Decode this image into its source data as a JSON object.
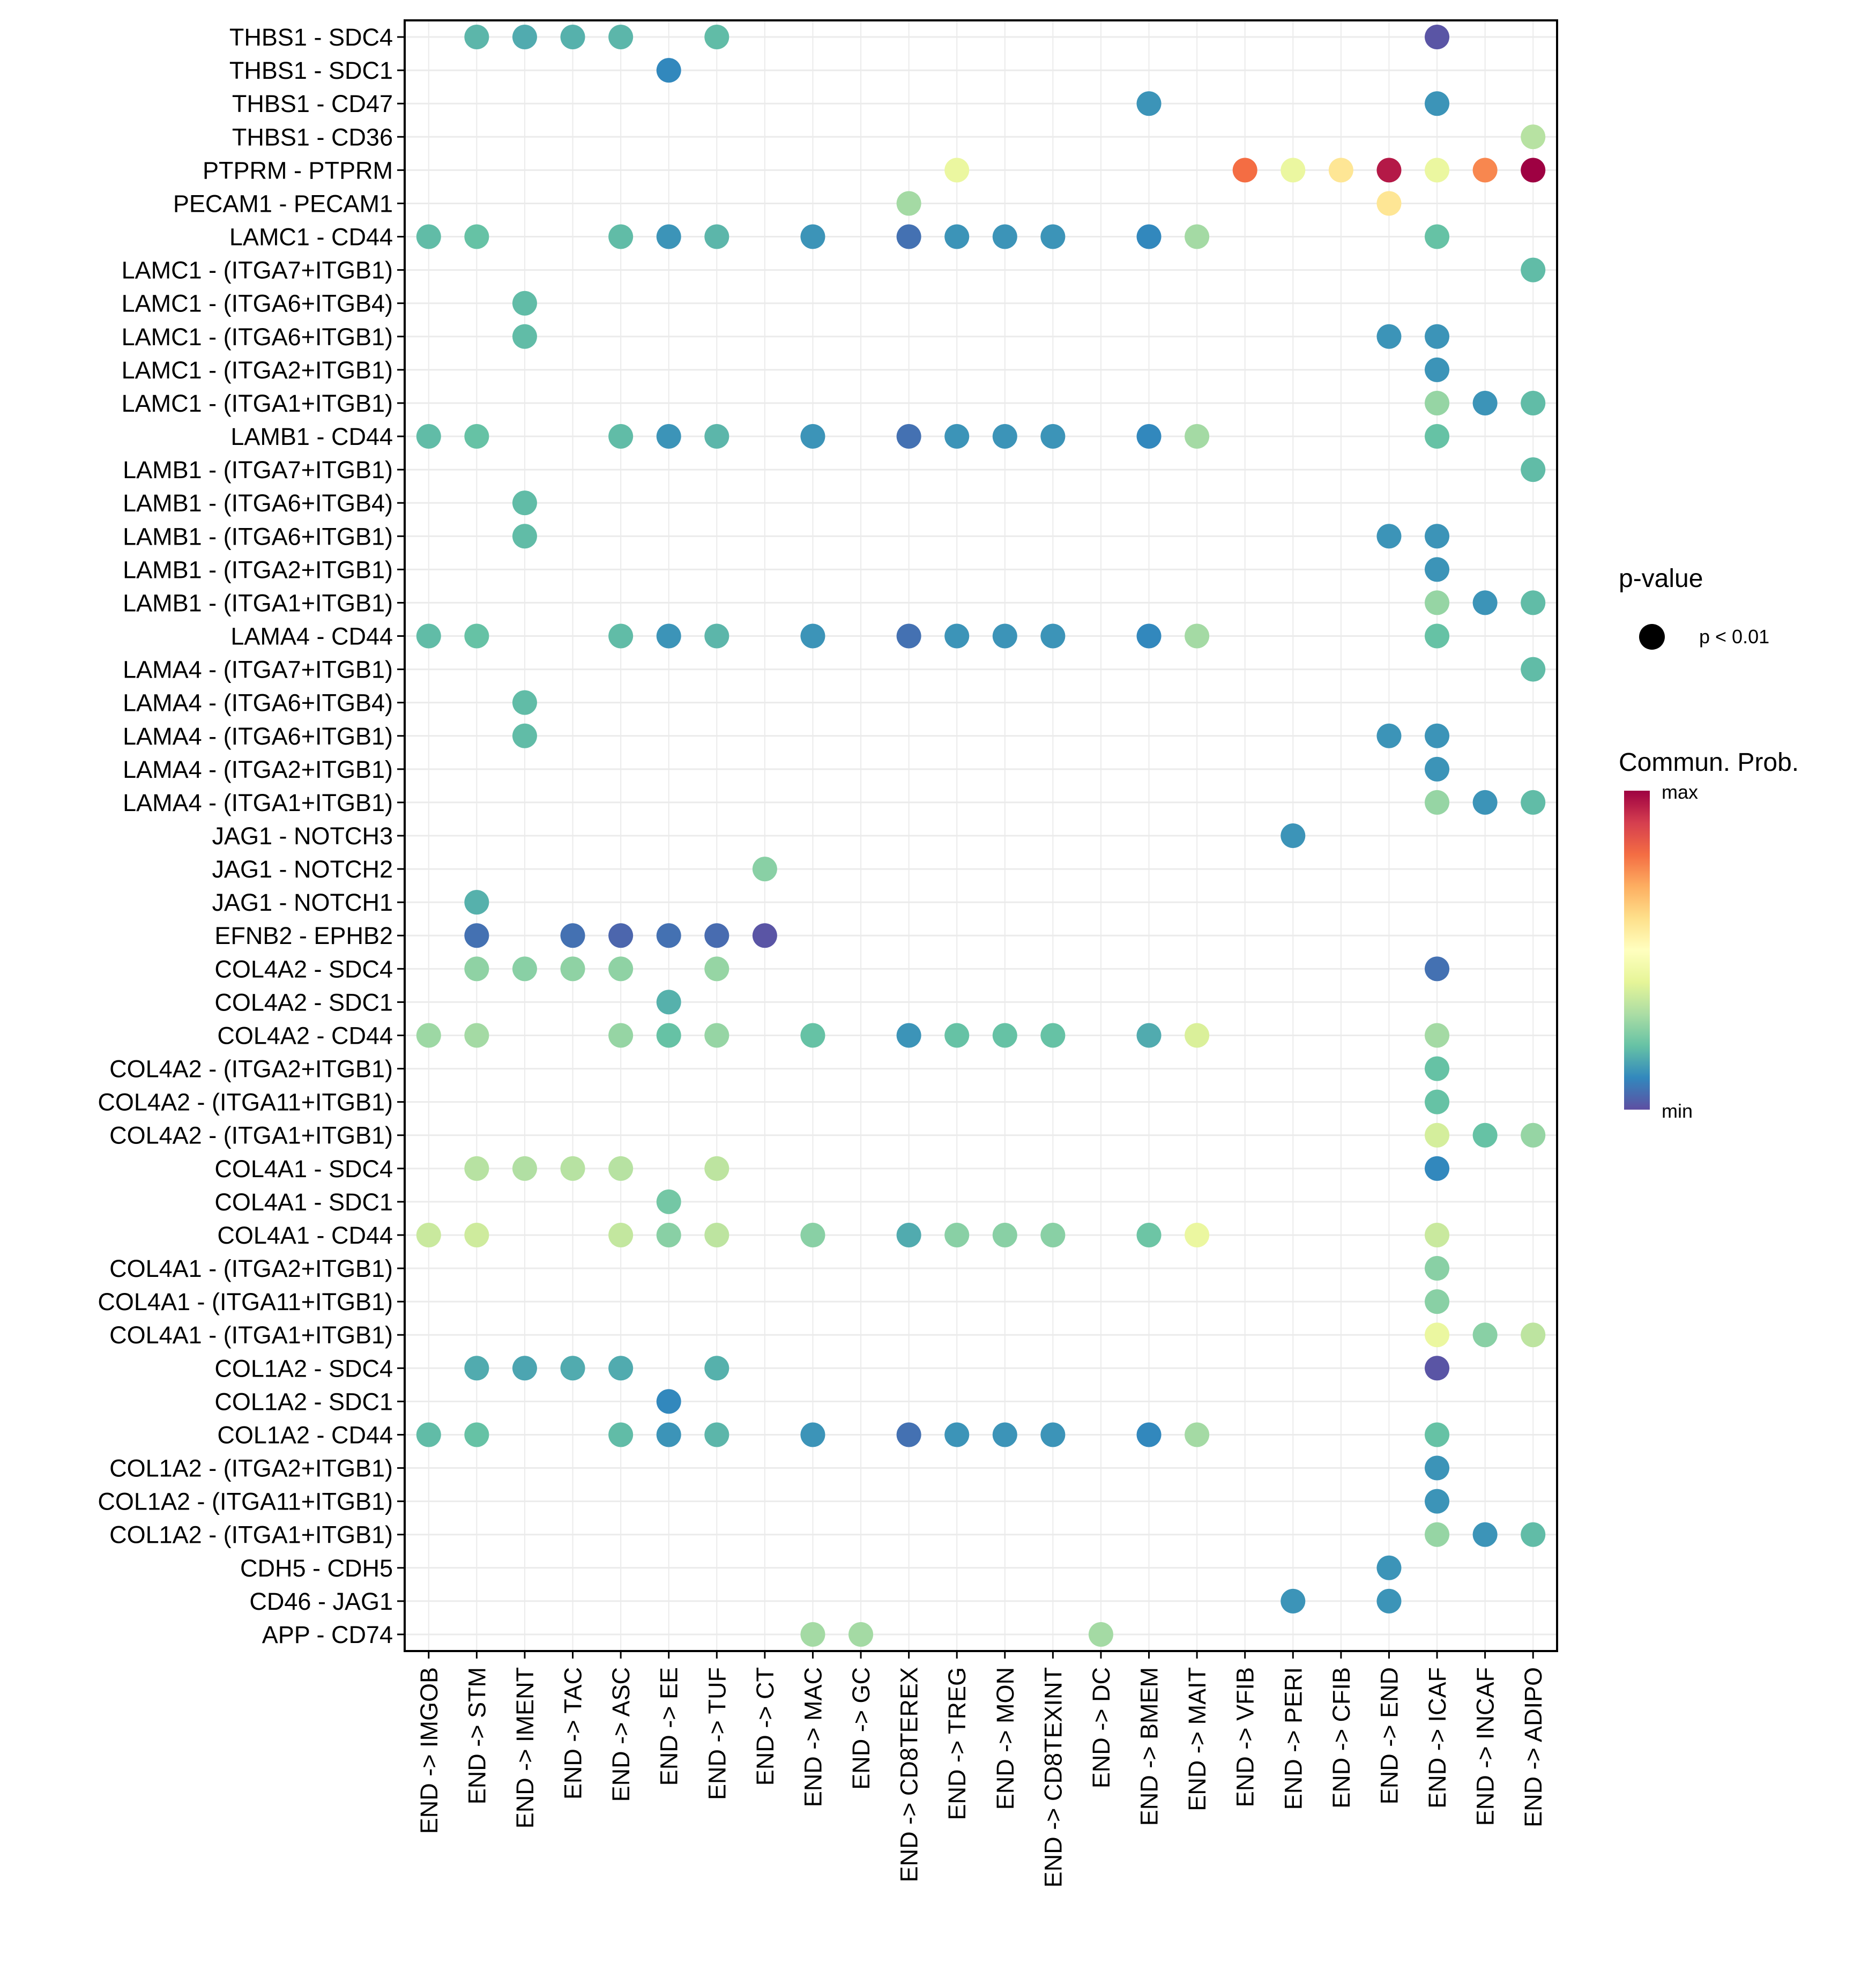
{
  "chart_data": {
    "type": "scatter",
    "subtype": "dot-matrix",
    "title": "",
    "xlabel": "",
    "ylabel": "",
    "grid": true,
    "legend_position": "right",
    "x_categories": [
      "END -> IMGOB",
      "END -> STM",
      "END -> IMENT",
      "END -> TAC",
      "END -> ASC",
      "END -> EE",
      "END -> TUF",
      "END -> CT",
      "END -> MAC",
      "END -> GC",
      "END -> CD8TEREX",
      "END -> TREG",
      "END -> MON",
      "END -> CD8TEXINT",
      "END -> DC",
      "END -> BMEM",
      "END -> MAIT",
      "END -> VFIB",
      "END -> PERI",
      "END -> CFIB",
      "END -> END",
      "END -> ICAF",
      "END -> INCAF",
      "END -> ADIPO"
    ],
    "y_categories": [
      "THBS1 - SDC4",
      "THBS1 - SDC1",
      "THBS1 - CD47",
      "THBS1 - CD36",
      "PTPRM - PTPRM",
      "PECAM1 - PECAM1",
      "LAMC1 - CD44",
      "LAMC1 - (ITGA7+ITGB1)",
      "LAMC1 - (ITGA6+ITGB4)",
      "LAMC1 - (ITGA6+ITGB1)",
      "LAMC1 - (ITGA2+ITGB1)",
      "LAMC1 - (ITGA1+ITGB1)",
      "LAMB1 - CD44",
      "LAMB1 - (ITGA7+ITGB1)",
      "LAMB1 - (ITGA6+ITGB4)",
      "LAMB1 - (ITGA6+ITGB1)",
      "LAMB1 - (ITGA2+ITGB1)",
      "LAMB1 - (ITGA1+ITGB1)",
      "LAMA4 - CD44",
      "LAMA4 - (ITGA7+ITGB1)",
      "LAMA4 - (ITGA6+ITGB4)",
      "LAMA4 - (ITGA6+ITGB1)",
      "LAMA4 - (ITGA2+ITGB1)",
      "LAMA4 - (ITGA1+ITGB1)",
      "JAG1 - NOTCH3",
      "JAG1 - NOTCH2",
      "JAG1 - NOTCH1",
      "EFNB2 - EPHB2",
      "COL4A2 - SDC4",
      "COL4A2 - SDC1",
      "COL4A2 - CD44",
      "COL4A2 - (ITGA2+ITGB1)",
      "COL4A2 - (ITGA11+ITGB1)",
      "COL4A2 - (ITGA1+ITGB1)",
      "COL4A1 - SDC4",
      "COL4A1 - SDC1",
      "COL4A1 - CD44",
      "COL4A1 - (ITGA2+ITGB1)",
      "COL4A1 - (ITGA11+ITGB1)",
      "COL4A1 - (ITGA1+ITGB1)",
      "COL1A2 - SDC4",
      "COL1A2 - SDC1",
      "COL1A2 - CD44",
      "COL1A2 - (ITGA2+ITGB1)",
      "COL1A2 - (ITGA11+ITGB1)",
      "COL1A2 - (ITGA1+ITGB1)",
      "CDH5 - CDH5",
      "CD46 - JAG1",
      "APP - CD74"
    ],
    "value_scale": "normalized Commun. Prob. (0 = min, 1 = max)",
    "points": [
      {
        "y": "THBS1 - SDC4",
        "x": "END -> STM",
        "prob": 0.18
      },
      {
        "y": "THBS1 - SDC4",
        "x": "END -> IMENT",
        "prob": 0.16
      },
      {
        "y": "THBS1 - SDC4",
        "x": "END -> TAC",
        "prob": 0.17
      },
      {
        "y": "THBS1 - SDC4",
        "x": "END -> ASC",
        "prob": 0.18
      },
      {
        "y": "THBS1 - SDC4",
        "x": "END -> TUF",
        "prob": 0.19
      },
      {
        "y": "THBS1 - SDC4",
        "x": "END -> ICAF",
        "prob": 0.01
      },
      {
        "y": "THBS1 - SDC1",
        "x": "END -> EE",
        "prob": 0.1
      },
      {
        "y": "THBS1 - CD47",
        "x": "END -> BMEM",
        "prob": 0.12
      },
      {
        "y": "THBS1 - CD47",
        "x": "END -> ICAF",
        "prob": 0.12
      },
      {
        "y": "THBS1 - CD36",
        "x": "END -> ADIPO",
        "prob": 0.32
      },
      {
        "y": "PTPRM - PTPRM",
        "x": "END -> TREG",
        "prob": 0.42
      },
      {
        "y": "PTPRM - PTPRM",
        "x": "END -> VFIB",
        "prob": 0.8
      },
      {
        "y": "PTPRM - PTPRM",
        "x": "END -> PERI",
        "prob": 0.42
      },
      {
        "y": "PTPRM - PTPRM",
        "x": "END -> CFIB",
        "prob": 0.58
      },
      {
        "y": "PTPRM - PTPRM",
        "x": "END -> END",
        "prob": 0.96
      },
      {
        "y": "PTPRM - PTPRM",
        "x": "END -> ICAF",
        "prob": 0.42
      },
      {
        "y": "PTPRM - PTPRM",
        "x": "END -> INCAF",
        "prob": 0.76
      },
      {
        "y": "PTPRM - PTPRM",
        "x": "END -> ADIPO",
        "prob": 1.0
      },
      {
        "y": "PECAM1 - PECAM1",
        "x": "END -> CD8TEREX",
        "prob": 0.29
      },
      {
        "y": "PECAM1 - PECAM1",
        "x": "END -> END",
        "prob": 0.58
      },
      {
        "y": "LAMC1 - CD44",
        "x": "END -> IMGOB",
        "prob": 0.19
      },
      {
        "y": "LAMC1 - CD44",
        "x": "END -> STM",
        "prob": 0.2
      },
      {
        "y": "LAMC1 - CD44",
        "x": "END -> ASC",
        "prob": 0.19
      },
      {
        "y": "LAMC1 - CD44",
        "x": "END -> EE",
        "prob": 0.12
      },
      {
        "y": "LAMC1 - CD44",
        "x": "END -> TUF",
        "prob": 0.18
      },
      {
        "y": "LAMC1 - CD44",
        "x": "END -> MAC",
        "prob": 0.12
      },
      {
        "y": "LAMC1 - CD44",
        "x": "END -> CD8TEREX",
        "prob": 0.06
      },
      {
        "y": "LAMC1 - CD44",
        "x": "END -> TREG",
        "prob": 0.12
      },
      {
        "y": "LAMC1 - CD44",
        "x": "END -> MON",
        "prob": 0.12
      },
      {
        "y": "LAMC1 - CD44",
        "x": "END -> CD8TEXINT",
        "prob": 0.12
      },
      {
        "y": "LAMC1 - CD44",
        "x": "END -> BMEM",
        "prob": 0.1
      },
      {
        "y": "LAMC1 - CD44",
        "x": "END -> MAIT",
        "prob": 0.29
      },
      {
        "y": "LAMC1 - CD44",
        "x": "END -> ICAF",
        "prob": 0.2
      },
      {
        "y": "LAMC1 - (ITGA7+ITGB1)",
        "x": "END -> ADIPO",
        "prob": 0.19
      },
      {
        "y": "LAMC1 - (ITGA6+ITGB4)",
        "x": "END -> IMENT",
        "prob": 0.19
      },
      {
        "y": "LAMC1 - (ITGA6+ITGB1)",
        "x": "END -> IMENT",
        "prob": 0.19
      },
      {
        "y": "LAMC1 - (ITGA6+ITGB1)",
        "x": "END -> END",
        "prob": 0.12
      },
      {
        "y": "LAMC1 - (ITGA6+ITGB1)",
        "x": "END -> ICAF",
        "prob": 0.12
      },
      {
        "y": "LAMC1 - (ITGA2+ITGB1)",
        "x": "END -> ICAF",
        "prob": 0.12
      },
      {
        "y": "LAMC1 - (ITGA1+ITGB1)",
        "x": "END -> ICAF",
        "prob": 0.27
      },
      {
        "y": "LAMC1 - (ITGA1+ITGB1)",
        "x": "END -> INCAF",
        "prob": 0.12
      },
      {
        "y": "LAMC1 - (ITGA1+ITGB1)",
        "x": "END -> ADIPO",
        "prob": 0.19
      },
      {
        "y": "LAMB1 - CD44",
        "x": "END -> IMGOB",
        "prob": 0.19
      },
      {
        "y": "LAMB1 - CD44",
        "x": "END -> STM",
        "prob": 0.2
      },
      {
        "y": "LAMB1 - CD44",
        "x": "END -> ASC",
        "prob": 0.19
      },
      {
        "y": "LAMB1 - CD44",
        "x": "END -> EE",
        "prob": 0.12
      },
      {
        "y": "LAMB1 - CD44",
        "x": "END -> TUF",
        "prob": 0.18
      },
      {
        "y": "LAMB1 - CD44",
        "x": "END -> MAC",
        "prob": 0.12
      },
      {
        "y": "LAMB1 - CD44",
        "x": "END -> CD8TEREX",
        "prob": 0.06
      },
      {
        "y": "LAMB1 - CD44",
        "x": "END -> TREG",
        "prob": 0.12
      },
      {
        "y": "LAMB1 - CD44",
        "x": "END -> MON",
        "prob": 0.12
      },
      {
        "y": "LAMB1 - CD44",
        "x": "END -> CD8TEXINT",
        "prob": 0.12
      },
      {
        "y": "LAMB1 - CD44",
        "x": "END -> BMEM",
        "prob": 0.1
      },
      {
        "y": "LAMB1 - CD44",
        "x": "END -> MAIT",
        "prob": 0.29
      },
      {
        "y": "LAMB1 - CD44",
        "x": "END -> ICAF",
        "prob": 0.2
      },
      {
        "y": "LAMB1 - (ITGA7+ITGB1)",
        "x": "END -> ADIPO",
        "prob": 0.19
      },
      {
        "y": "LAMB1 - (ITGA6+ITGB4)",
        "x": "END -> IMENT",
        "prob": 0.19
      },
      {
        "y": "LAMB1 - (ITGA6+ITGB1)",
        "x": "END -> IMENT",
        "prob": 0.19
      },
      {
        "y": "LAMB1 - (ITGA6+ITGB1)",
        "x": "END -> END",
        "prob": 0.12
      },
      {
        "y": "LAMB1 - (ITGA6+ITGB1)",
        "x": "END -> ICAF",
        "prob": 0.12
      },
      {
        "y": "LAMB1 - (ITGA2+ITGB1)",
        "x": "END -> ICAF",
        "prob": 0.12
      },
      {
        "y": "LAMB1 - (ITGA1+ITGB1)",
        "x": "END -> ICAF",
        "prob": 0.27
      },
      {
        "y": "LAMB1 - (ITGA1+ITGB1)",
        "x": "END -> INCAF",
        "prob": 0.12
      },
      {
        "y": "LAMB1 - (ITGA1+ITGB1)",
        "x": "END -> ADIPO",
        "prob": 0.19
      },
      {
        "y": "LAMA4 - CD44",
        "x": "END -> IMGOB",
        "prob": 0.19
      },
      {
        "y": "LAMA4 - CD44",
        "x": "END -> STM",
        "prob": 0.2
      },
      {
        "y": "LAMA4 - CD44",
        "x": "END -> ASC",
        "prob": 0.19
      },
      {
        "y": "LAMA4 - CD44",
        "x": "END -> EE",
        "prob": 0.12
      },
      {
        "y": "LAMA4 - CD44",
        "x": "END -> TUF",
        "prob": 0.18
      },
      {
        "y": "LAMA4 - CD44",
        "x": "END -> MAC",
        "prob": 0.12
      },
      {
        "y": "LAMA4 - CD44",
        "x": "END -> CD8TEREX",
        "prob": 0.06
      },
      {
        "y": "LAMA4 - CD44",
        "x": "END -> TREG",
        "prob": 0.12
      },
      {
        "y": "LAMA4 - CD44",
        "x": "END -> MON",
        "prob": 0.12
      },
      {
        "y": "LAMA4 - CD44",
        "x": "END -> CD8TEXINT",
        "prob": 0.12
      },
      {
        "y": "LAMA4 - CD44",
        "x": "END -> BMEM",
        "prob": 0.1
      },
      {
        "y": "LAMA4 - CD44",
        "x": "END -> MAIT",
        "prob": 0.29
      },
      {
        "y": "LAMA4 - CD44",
        "x": "END -> ICAF",
        "prob": 0.2
      },
      {
        "y": "LAMA4 - (ITGA7+ITGB1)",
        "x": "END -> ADIPO",
        "prob": 0.19
      },
      {
        "y": "LAMA4 - (ITGA6+ITGB4)",
        "x": "END -> IMENT",
        "prob": 0.19
      },
      {
        "y": "LAMA4 - (ITGA6+ITGB1)",
        "x": "END -> IMENT",
        "prob": 0.19
      },
      {
        "y": "LAMA4 - (ITGA6+ITGB1)",
        "x": "END -> END",
        "prob": 0.12
      },
      {
        "y": "LAMA4 - (ITGA6+ITGB1)",
        "x": "END -> ICAF",
        "prob": 0.12
      },
      {
        "y": "LAMA4 - (ITGA2+ITGB1)",
        "x": "END -> ICAF",
        "prob": 0.12
      },
      {
        "y": "LAMA4 - (ITGA1+ITGB1)",
        "x": "END -> ICAF",
        "prob": 0.27
      },
      {
        "y": "LAMA4 - (ITGA1+ITGB1)",
        "x": "END -> INCAF",
        "prob": 0.12
      },
      {
        "y": "LAMA4 - (ITGA1+ITGB1)",
        "x": "END -> ADIPO",
        "prob": 0.19
      },
      {
        "y": "JAG1 - NOTCH3",
        "x": "END -> PERI",
        "prob": 0.12
      },
      {
        "y": "JAG1 - NOTCH2",
        "x": "END -> CT",
        "prob": 0.25
      },
      {
        "y": "JAG1 - NOTCH1",
        "x": "END -> STM",
        "prob": 0.17
      },
      {
        "y": "EFNB2 - EPHB2",
        "x": "END -> STM",
        "prob": 0.06
      },
      {
        "y": "EFNB2 - EPHB2",
        "x": "END -> TAC",
        "prob": 0.06
      },
      {
        "y": "EFNB2 - EPHB2",
        "x": "END -> ASC",
        "prob": 0.04
      },
      {
        "y": "EFNB2 - EPHB2",
        "x": "END -> EE",
        "prob": 0.06
      },
      {
        "y": "EFNB2 - EPHB2",
        "x": "END -> TUF",
        "prob": 0.05
      },
      {
        "y": "EFNB2 - EPHB2",
        "x": "END -> CT",
        "prob": 0.01
      },
      {
        "y": "COL4A2 - SDC4",
        "x": "END -> STM",
        "prob": 0.26
      },
      {
        "y": "COL4A2 - SDC4",
        "x": "END -> IMENT",
        "prob": 0.25
      },
      {
        "y": "COL4A2 - SDC4",
        "x": "END -> TAC",
        "prob": 0.26
      },
      {
        "y": "COL4A2 - SDC4",
        "x": "END -> ASC",
        "prob": 0.26
      },
      {
        "y": "COL4A2 - SDC4",
        "x": "END -> TUF",
        "prob": 0.27
      },
      {
        "y": "COL4A2 - SDC4",
        "x": "END -> ICAF",
        "prob": 0.06
      },
      {
        "y": "COL4A2 - SDC1",
        "x": "END -> EE",
        "prob": 0.17
      },
      {
        "y": "COL4A2 - CD44",
        "x": "END -> IMGOB",
        "prob": 0.28
      },
      {
        "y": "COL4A2 - CD44",
        "x": "END -> STM",
        "prob": 0.29
      },
      {
        "y": "COL4A2 - CD44",
        "x": "END -> ASC",
        "prob": 0.27
      },
      {
        "y": "COL4A2 - CD44",
        "x": "END -> EE",
        "prob": 0.2
      },
      {
        "y": "COL4A2 - CD44",
        "x": "END -> TUF",
        "prob": 0.27
      },
      {
        "y": "COL4A2 - CD44",
        "x": "END -> MAC",
        "prob": 0.2
      },
      {
        "y": "COL4A2 - CD44",
        "x": "END -> CD8TEREX",
        "prob": 0.12
      },
      {
        "y": "COL4A2 - CD44",
        "x": "END -> TREG",
        "prob": 0.2
      },
      {
        "y": "COL4A2 - CD44",
        "x": "END -> MON",
        "prob": 0.2
      },
      {
        "y": "COL4A2 - CD44",
        "x": "END -> CD8TEXINT",
        "prob": 0.2
      },
      {
        "y": "COL4A2 - CD44",
        "x": "END -> BMEM",
        "prob": 0.16
      },
      {
        "y": "COL4A2 - CD44",
        "x": "END -> MAIT",
        "prob": 0.38
      },
      {
        "y": "COL4A2 - CD44",
        "x": "END -> ICAF",
        "prob": 0.29
      },
      {
        "y": "COL4A2 - (ITGA2+ITGB1)",
        "x": "END -> ICAF",
        "prob": 0.2
      },
      {
        "y": "COL4A2 - (ITGA11+ITGB1)",
        "x": "END -> ICAF",
        "prob": 0.2
      },
      {
        "y": "COL4A2 - (ITGA1+ITGB1)",
        "x": "END -> ICAF",
        "prob": 0.37
      },
      {
        "y": "COL4A2 - (ITGA1+ITGB1)",
        "x": "END -> INCAF",
        "prob": 0.2
      },
      {
        "y": "COL4A2 - (ITGA1+ITGB1)",
        "x": "END -> ADIPO",
        "prob": 0.27
      },
      {
        "y": "COL4A1 - SDC4",
        "x": "END -> STM",
        "prob": 0.32
      },
      {
        "y": "COL4A1 - SDC4",
        "x": "END -> IMENT",
        "prob": 0.31
      },
      {
        "y": "COL4A1 - SDC4",
        "x": "END -> TAC",
        "prob": 0.32
      },
      {
        "y": "COL4A1 - SDC4",
        "x": "END -> ASC",
        "prob": 0.32
      },
      {
        "y": "COL4A1 - SDC4",
        "x": "END -> TUF",
        "prob": 0.33
      },
      {
        "y": "COL4A1 - SDC4",
        "x": "END -> ICAF",
        "prob": 0.1
      },
      {
        "y": "COL4A1 - SDC1",
        "x": "END -> EE",
        "prob": 0.22
      },
      {
        "y": "COL4A1 - CD44",
        "x": "END -> IMGOB",
        "prob": 0.35
      },
      {
        "y": "COL4A1 - CD44",
        "x": "END -> STM",
        "prob": 0.36
      },
      {
        "y": "COL4A1 - CD44",
        "x": "END -> ASC",
        "prob": 0.34
      },
      {
        "y": "COL4A1 - CD44",
        "x": "END -> EE",
        "prob": 0.25
      },
      {
        "y": "COL4A1 - CD44",
        "x": "END -> TUF",
        "prob": 0.33
      },
      {
        "y": "COL4A1 - CD44",
        "x": "END -> MAC",
        "prob": 0.25
      },
      {
        "y": "COL4A1 - CD44",
        "x": "END -> CD8TEREX",
        "prob": 0.16
      },
      {
        "y": "COL4A1 - CD44",
        "x": "END -> TREG",
        "prob": 0.25
      },
      {
        "y": "COL4A1 - CD44",
        "x": "END -> MON",
        "prob": 0.25
      },
      {
        "y": "COL4A1 - CD44",
        "x": "END -> CD8TEXINT",
        "prob": 0.25
      },
      {
        "y": "COL4A1 - CD44",
        "x": "END -> BMEM",
        "prob": 0.21
      },
      {
        "y": "COL4A1 - CD44",
        "x": "END -> MAIT",
        "prob": 0.42
      },
      {
        "y": "COL4A1 - CD44",
        "x": "END -> ICAF",
        "prob": 0.35
      },
      {
        "y": "COL4A1 - (ITGA2+ITGB1)",
        "x": "END -> ICAF",
        "prob": 0.25
      },
      {
        "y": "COL4A1 - (ITGA11+ITGB1)",
        "x": "END -> ICAF",
        "prob": 0.25
      },
      {
        "y": "COL4A1 - (ITGA1+ITGB1)",
        "x": "END -> ICAF",
        "prob": 0.42
      },
      {
        "y": "COL4A1 - (ITGA1+ITGB1)",
        "x": "END -> INCAF",
        "prob": 0.25
      },
      {
        "y": "COL4A1 - (ITGA1+ITGB1)",
        "x": "END -> ADIPO",
        "prob": 0.33
      },
      {
        "y": "COL1A2 - SDC4",
        "x": "END -> STM",
        "prob": 0.16
      },
      {
        "y": "COL1A2 - SDC4",
        "x": "END -> IMENT",
        "prob": 0.15
      },
      {
        "y": "COL1A2 - SDC4",
        "x": "END -> TAC",
        "prob": 0.16
      },
      {
        "y": "COL1A2 - SDC4",
        "x": "END -> ASC",
        "prob": 0.16
      },
      {
        "y": "COL1A2 - SDC4",
        "x": "END -> TUF",
        "prob": 0.17
      },
      {
        "y": "COL1A2 - SDC4",
        "x": "END -> ICAF",
        "prob": 0.01
      },
      {
        "y": "COL1A2 - SDC1",
        "x": "END -> EE",
        "prob": 0.1
      },
      {
        "y": "COL1A2 - CD44",
        "x": "END -> IMGOB",
        "prob": 0.19
      },
      {
        "y": "COL1A2 - CD44",
        "x": "END -> STM",
        "prob": 0.2
      },
      {
        "y": "COL1A2 - CD44",
        "x": "END -> ASC",
        "prob": 0.19
      },
      {
        "y": "COL1A2 - CD44",
        "x": "END -> EE",
        "prob": 0.12
      },
      {
        "y": "COL1A2 - CD44",
        "x": "END -> TUF",
        "prob": 0.18
      },
      {
        "y": "COL1A2 - CD44",
        "x": "END -> MAC",
        "prob": 0.12
      },
      {
        "y": "COL1A2 - CD44",
        "x": "END -> CD8TEREX",
        "prob": 0.06
      },
      {
        "y": "COL1A2 - CD44",
        "x": "END -> TREG",
        "prob": 0.12
      },
      {
        "y": "COL1A2 - CD44",
        "x": "END -> MON",
        "prob": 0.12
      },
      {
        "y": "COL1A2 - CD44",
        "x": "END -> CD8TEXINT",
        "prob": 0.12
      },
      {
        "y": "COL1A2 - CD44",
        "x": "END -> BMEM",
        "prob": 0.1
      },
      {
        "y": "COL1A2 - CD44",
        "x": "END -> MAIT",
        "prob": 0.29
      },
      {
        "y": "COL1A2 - CD44",
        "x": "END -> ICAF",
        "prob": 0.2
      },
      {
        "y": "COL1A2 - (ITGA2+ITGB1)",
        "x": "END -> ICAF",
        "prob": 0.12
      },
      {
        "y": "COL1A2 - (ITGA11+ITGB1)",
        "x": "END -> ICAF",
        "prob": 0.12
      },
      {
        "y": "COL1A2 - (ITGA1+ITGB1)",
        "x": "END -> ICAF",
        "prob": 0.27
      },
      {
        "y": "COL1A2 - (ITGA1+ITGB1)",
        "x": "END -> INCAF",
        "prob": 0.12
      },
      {
        "y": "COL1A2 - (ITGA1+ITGB1)",
        "x": "END -> ADIPO",
        "prob": 0.19
      },
      {
        "y": "CDH5 - CDH5",
        "x": "END -> END",
        "prob": 0.12
      },
      {
        "y": "CD46 - JAG1",
        "x": "END -> PERI",
        "prob": 0.12
      },
      {
        "y": "CD46 - JAG1",
        "x": "END -> END",
        "prob": 0.12
      },
      {
        "y": "APP - CD74",
        "x": "END -> MAC",
        "prob": 0.29
      },
      {
        "y": "APP - CD74",
        "x": "END -> GC",
        "prob": 0.29
      },
      {
        "y": "APP - CD74",
        "x": "END -> DC",
        "prob": 0.29
      }
    ],
    "legend": {
      "size_title": "p-value",
      "size_label": "p < 0.01",
      "color_title": "Commun. Prob.",
      "color_max_label": "max",
      "color_min_label": "min",
      "colormap": "Spectral (reversed)",
      "color_stops": [
        "#5E4FA2",
        "#3288BD",
        "#66C2A5",
        "#ABDDA4",
        "#E6F598",
        "#FFFFBF",
        "#FEE08B",
        "#FDAE61",
        "#F46D43",
        "#D53E4F",
        "#9E0142"
      ]
    }
  }
}
